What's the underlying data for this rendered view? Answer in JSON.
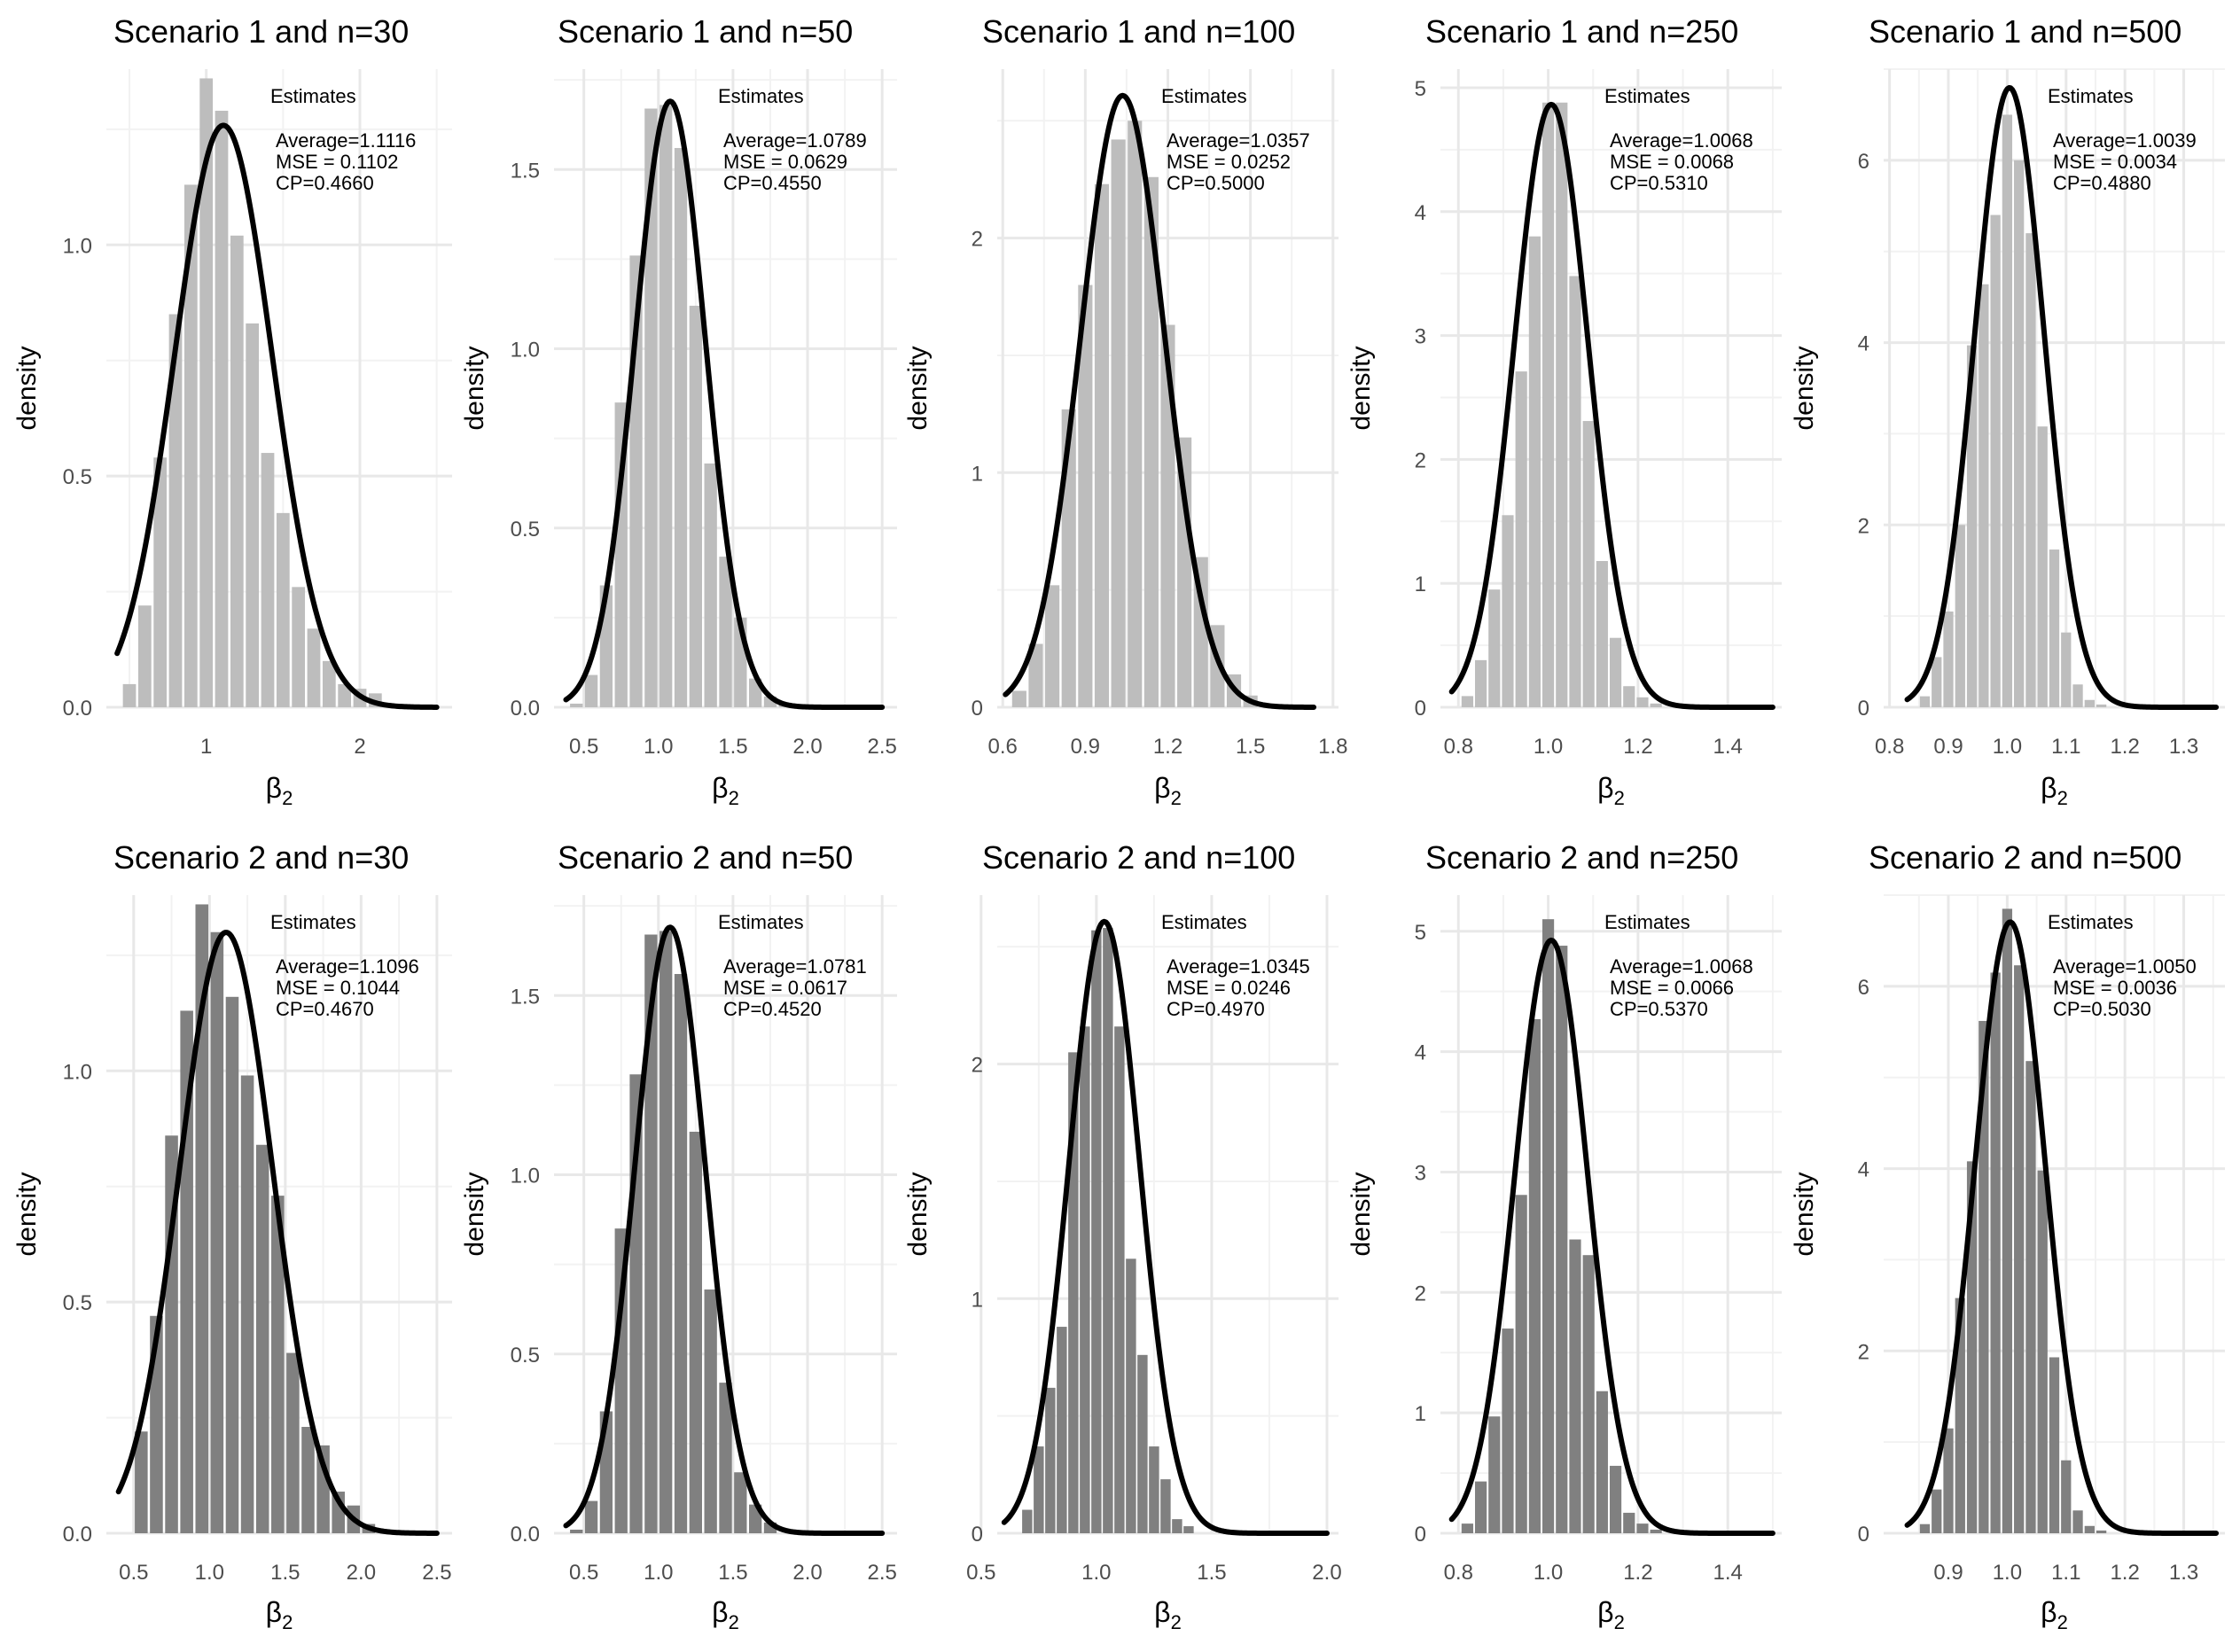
{
  "figure": {
    "xlabel_base": "β",
    "xlabel_sub": "2",
    "ylabel": "density"
  },
  "chart_data": [
    {
      "type": "bar",
      "title": "Scenario 1 and n=30",
      "legend": {
        "title": "Estimates",
        "lines": [
          "Average=1.1116",
          "MSE = 0.1102",
          "CP=0.4660"
        ]
      },
      "xlim": [
        0.35,
        2.6
      ],
      "ylim": [
        0,
        1.38
      ],
      "xticks": [
        1,
        2
      ],
      "yticks": [
        0.0,
        0.5,
        1.0
      ],
      "ytick_labels": [
        "0.0",
        "0.5",
        "1.0"
      ],
      "bar_fill": "#bdbdbd",
      "bar_x": [
        0.5,
        0.6,
        0.7,
        0.8,
        0.9,
        1.0,
        1.1,
        1.2,
        1.3,
        1.4,
        1.5,
        1.6,
        1.7,
        1.8,
        1.9,
        2.0,
        2.1
      ],
      "bar_y": [
        0.05,
        0.22,
        0.54,
        0.85,
        1.13,
        1.36,
        1.29,
        1.02,
        0.83,
        0.55,
        0.42,
        0.26,
        0.17,
        0.1,
        0.05,
        0.04,
        0.03
      ],
      "bar_width": 0.085,
      "curve": {
        "mean": 1.1116,
        "sd": 0.317,
        "from": 0.42,
        "to": 2.5
      }
    },
    {
      "type": "bar",
      "title": "Scenario 1 and n=50",
      "legend": {
        "title": "Estimates",
        "lines": [
          "Average=1.0789",
          "MSE = 0.0629",
          "CP=0.4550"
        ]
      },
      "xlim": [
        0.3,
        2.6
      ],
      "ylim": [
        0,
        1.78
      ],
      "xticks": [
        0.5,
        1.0,
        1.5,
        2.0,
        2.5
      ],
      "xtick_labels": [
        "0.5",
        "1.0",
        "1.5",
        "2.0",
        "2.5"
      ],
      "yticks": [
        0.0,
        0.5,
        1.0,
        1.5
      ],
      "ytick_labels": [
        "0.0",
        "0.5",
        "1.0",
        "1.5"
      ],
      "bar_fill": "#bdbdbd",
      "bar_x": [
        0.45,
        0.55,
        0.65,
        0.75,
        0.85,
        0.95,
        1.05,
        1.15,
        1.25,
        1.35,
        1.45,
        1.55,
        1.65,
        1.75,
        1.85
      ],
      "bar_y": [
        0.01,
        0.09,
        0.34,
        0.85,
        1.26,
        1.67,
        1.68,
        1.56,
        1.12,
        0.68,
        0.42,
        0.25,
        0.08,
        0.03,
        0.01
      ],
      "bar_width": 0.085,
      "curve": {
        "mean": 1.0789,
        "sd": 0.236,
        "from": 0.38,
        "to": 2.5
      }
    },
    {
      "type": "bar",
      "title": "Scenario 1 and n=100",
      "legend": {
        "title": "Estimates",
        "lines": [
          "Average=1.0357",
          "MSE = 0.0252",
          "CP=0.5000"
        ]
      },
      "xlim": [
        0.58,
        1.82
      ],
      "ylim": [
        0,
        2.72
      ],
      "xticks": [
        0.6,
        0.9,
        1.2,
        1.5,
        1.8
      ],
      "xtick_labels": [
        "0.6",
        "0.9",
        "1.2",
        "1.5",
        "1.8"
      ],
      "yticks": [
        0,
        1,
        2
      ],
      "ytick_labels": [
        "0",
        "1",
        "2"
      ],
      "bar_fill": "#bdbdbd",
      "bar_x": [
        0.66,
        0.72,
        0.78,
        0.84,
        0.9,
        0.96,
        1.02,
        1.08,
        1.14,
        1.2,
        1.26,
        1.32,
        1.38,
        1.44,
        1.5
      ],
      "bar_y": [
        0.07,
        0.27,
        0.52,
        1.27,
        1.8,
        2.23,
        2.42,
        2.5,
        2.26,
        1.63,
        1.15,
        0.64,
        0.35,
        0.14,
        0.05
      ],
      "bar_width": 0.052,
      "curve": {
        "mean": 1.0357,
        "sd": 0.153,
        "from": 0.61,
        "to": 1.73
      }
    },
    {
      "type": "bar",
      "title": "Scenario 1 and n=250",
      "legend": {
        "title": "Estimates",
        "lines": [
          "Average=1.0068",
          "MSE = 0.0068",
          "CP=0.5310"
        ]
      },
      "xlim": [
        0.76,
        1.52
      ],
      "ylim": [
        0,
        5.15
      ],
      "xticks": [
        0.8,
        1.0,
        1.2,
        1.4
      ],
      "xtick_labels": [
        "0.8",
        "1.0",
        "1.2",
        "1.4"
      ],
      "yticks": [
        0,
        1,
        2,
        3,
        4,
        5
      ],
      "ytick_labels": [
        "0",
        "1",
        "2",
        "3",
        "4",
        "5"
      ],
      "bar_fill": "#bdbdbd",
      "bar_x": [
        0.82,
        0.85,
        0.88,
        0.91,
        0.94,
        0.97,
        1.0,
        1.03,
        1.06,
        1.09,
        1.12,
        1.15,
        1.18,
        1.21,
        1.24
      ],
      "bar_y": [
        0.09,
        0.38,
        0.95,
        1.55,
        2.71,
        3.8,
        4.88,
        4.88,
        3.48,
        2.31,
        1.18,
        0.56,
        0.17,
        0.08,
        0.03
      ],
      "bar_width": 0.026,
      "curve": {
        "mean": 1.0068,
        "sd": 0.082,
        "from": 0.785,
        "to": 1.5
      }
    },
    {
      "type": "bar",
      "title": "Scenario 1 and n=500",
      "legend": {
        "title": "Estimates",
        "lines": [
          "Average=1.0039",
          "MSE = 0.0034",
          "CP=0.4880"
        ]
      },
      "xlim": [
        0.79,
        1.37
      ],
      "ylim": [
        0,
        7.0
      ],
      "xticks": [
        0.8,
        0.9,
        1.0,
        1.1,
        1.2,
        1.3
      ],
      "xtick_labels": [
        "0.8",
        "0.9",
        "1.0",
        "1.1",
        "1.2",
        "1.3"
      ],
      "yticks": [
        0,
        2,
        4,
        6
      ],
      "ytick_labels": [
        "0",
        "2",
        "4",
        "6"
      ],
      "bar_fill": "#bdbdbd",
      "bar_x": [
        0.86,
        0.88,
        0.9,
        0.92,
        0.94,
        0.96,
        0.98,
        1.0,
        1.02,
        1.04,
        1.06,
        1.08,
        1.1,
        1.12,
        1.14,
        1.16
      ],
      "bar_y": [
        0.12,
        0.55,
        1.05,
        2.0,
        3.97,
        4.64,
        5.4,
        6.5,
        6.0,
        5.2,
        3.08,
        1.73,
        0.82,
        0.25,
        0.08,
        0.03
      ],
      "bar_width": 0.017,
      "curve": {
        "mean": 1.0039,
        "sd": 0.0587,
        "from": 0.83,
        "to": 1.355
      }
    },
    {
      "type": "bar",
      "title": "Scenario 2 and n=30",
      "legend": {
        "title": "Estimates",
        "lines": [
          "Average=1.1096",
          "MSE = 0.1044",
          "CP=0.4670"
        ]
      },
      "xlim": [
        0.32,
        2.6
      ],
      "ylim": [
        0,
        1.38
      ],
      "xticks": [
        0.5,
        1.0,
        1.5,
        2.0,
        2.5
      ],
      "xtick_labels": [
        "0.5",
        "1.0",
        "1.5",
        "2.0",
        "2.5"
      ],
      "yticks": [
        0.0,
        0.5,
        1.0
      ],
      "ytick_labels": [
        "0.0",
        "0.5",
        "1.0"
      ],
      "bar_fill": "#808080",
      "bar_x": [
        0.55,
        0.65,
        0.75,
        0.85,
        0.95,
        1.05,
        1.15,
        1.25,
        1.35,
        1.45,
        1.55,
        1.65,
        1.75,
        1.85,
        1.95,
        2.05
      ],
      "bar_y": [
        0.22,
        0.47,
        0.86,
        1.13,
        1.36,
        1.3,
        1.16,
        0.99,
        0.84,
        0.73,
        0.39,
        0.23,
        0.19,
        0.09,
        0.06,
        0.02
      ],
      "bar_width": 0.085,
      "curve": {
        "mean": 1.1096,
        "sd": 0.307,
        "from": 0.4,
        "to": 2.5
      }
    },
    {
      "type": "bar",
      "title": "Scenario 2 and n=50",
      "legend": {
        "title": "Estimates",
        "lines": [
          "Average=1.0781",
          "MSE = 0.0617",
          "CP=0.4520"
        ]
      },
      "xlim": [
        0.3,
        2.6
      ],
      "ylim": [
        0,
        1.78
      ],
      "xticks": [
        0.5,
        1.0,
        1.5,
        2.0,
        2.5
      ],
      "xtick_labels": [
        "0.5",
        "1.0",
        "1.5",
        "2.0",
        "2.5"
      ],
      "yticks": [
        0.0,
        0.5,
        1.0,
        1.5
      ],
      "ytick_labels": [
        "0.0",
        "0.5",
        "1.0",
        "1.5"
      ],
      "bar_fill": "#808080",
      "bar_x": [
        0.45,
        0.55,
        0.65,
        0.75,
        0.85,
        0.95,
        1.05,
        1.15,
        1.25,
        1.35,
        1.45,
        1.55,
        1.65,
        1.75
      ],
      "bar_y": [
        0.01,
        0.09,
        0.34,
        0.85,
        1.28,
        1.67,
        1.68,
        1.56,
        1.12,
        0.68,
        0.42,
        0.17,
        0.08,
        0.03
      ],
      "bar_width": 0.085,
      "curve": {
        "mean": 1.0781,
        "sd": 0.236,
        "from": 0.38,
        "to": 2.5
      }
    },
    {
      "type": "bar",
      "title": "Scenario 2 and n=100",
      "legend": {
        "title": "Estimates",
        "lines": [
          "Average=1.0345",
          "MSE = 0.0246",
          "CP=0.4970"
        ]
      },
      "xlim": [
        0.57,
        2.05
      ],
      "ylim": [
        0,
        2.72
      ],
      "xticks": [
        0.5,
        1.0,
        1.5,
        2.0
      ],
      "xtick_labels": [
        "0.5",
        "1.0",
        "1.5",
        "2.0"
      ],
      "yticks": [
        0,
        1,
        2
      ],
      "ytick_labels": [
        "0",
        "1",
        "2"
      ],
      "bar_fill": "#808080",
      "bar_x": [
        0.7,
        0.75,
        0.8,
        0.85,
        0.9,
        0.95,
        1.0,
        1.05,
        1.1,
        1.15,
        1.2,
        1.25,
        1.3,
        1.35,
        1.4
      ],
      "bar_y": [
        0.1,
        0.37,
        0.62,
        0.88,
        2.05,
        2.16,
        2.57,
        2.58,
        2.16,
        1.17,
        0.76,
        0.37,
        0.23,
        0.06,
        0.03
      ],
      "bar_width": 0.044,
      "curve": {
        "mean": 1.0345,
        "sd": 0.153,
        "from": 0.6,
        "to": 2.0
      }
    },
    {
      "type": "bar",
      "title": "Scenario 2 and n=250",
      "legend": {
        "title": "Estimates",
        "lines": [
          "Average=1.0068",
          "MSE = 0.0066",
          "CP=0.5370"
        ]
      },
      "xlim": [
        0.76,
        1.52
      ],
      "ylim": [
        0,
        5.3
      ],
      "xticks": [
        0.8,
        1.0,
        1.2,
        1.4
      ],
      "xtick_labels": [
        "0.8",
        "1.0",
        "1.2",
        "1.4"
      ],
      "yticks": [
        0,
        1,
        2,
        3,
        4,
        5
      ],
      "ytick_labels": [
        "0",
        "1",
        "2",
        "3",
        "4",
        "5"
      ],
      "bar_fill": "#808080",
      "bar_x": [
        0.82,
        0.85,
        0.88,
        0.91,
        0.94,
        0.97,
        1.0,
        1.03,
        1.06,
        1.09,
        1.12,
        1.15,
        1.18,
        1.21,
        1.24
      ],
      "bar_y": [
        0.08,
        0.43,
        0.97,
        1.7,
        2.81,
        4.27,
        5.1,
        4.88,
        2.44,
        2.31,
        1.18,
        0.56,
        0.17,
        0.08,
        0.03
      ],
      "bar_width": 0.026,
      "curve": {
        "mean": 1.0068,
        "sd": 0.081,
        "from": 0.785,
        "to": 1.5
      }
    },
    {
      "type": "bar",
      "title": "Scenario 2 and n=500",
      "legend": {
        "title": "Estimates",
        "lines": [
          "Average=1.0050",
          "MSE = 0.0036",
          "CP=0.5030"
        ]
      },
      "xlim": [
        0.79,
        1.37
      ],
      "ylim": [
        0,
        7.0
      ],
      "xticks": [
        0.9,
        1.0,
        1.1,
        1.2,
        1.3
      ],
      "xtick_labels": [
        "0.9",
        "1.0",
        "1.1",
        "1.2",
        "1.3"
      ],
      "yticks": [
        0,
        2,
        4,
        6
      ],
      "ytick_labels": [
        "0",
        "2",
        "4",
        "6"
      ],
      "bar_fill": "#808080",
      "bar_x": [
        0.86,
        0.88,
        0.9,
        0.92,
        0.94,
        0.96,
        0.98,
        1.0,
        1.02,
        1.04,
        1.06,
        1.08,
        1.1,
        1.12,
        1.14,
        1.16
      ],
      "bar_y": [
        0.1,
        0.48,
        1.15,
        2.58,
        4.08,
        5.62,
        6.15,
        6.85,
        6.23,
        5.18,
        3.98,
        1.93,
        0.8,
        0.25,
        0.08,
        0.03
      ],
      "bar_width": 0.017,
      "curve": {
        "mean": 1.005,
        "sd": 0.0595,
        "from": 0.83,
        "to": 1.355
      }
    }
  ]
}
